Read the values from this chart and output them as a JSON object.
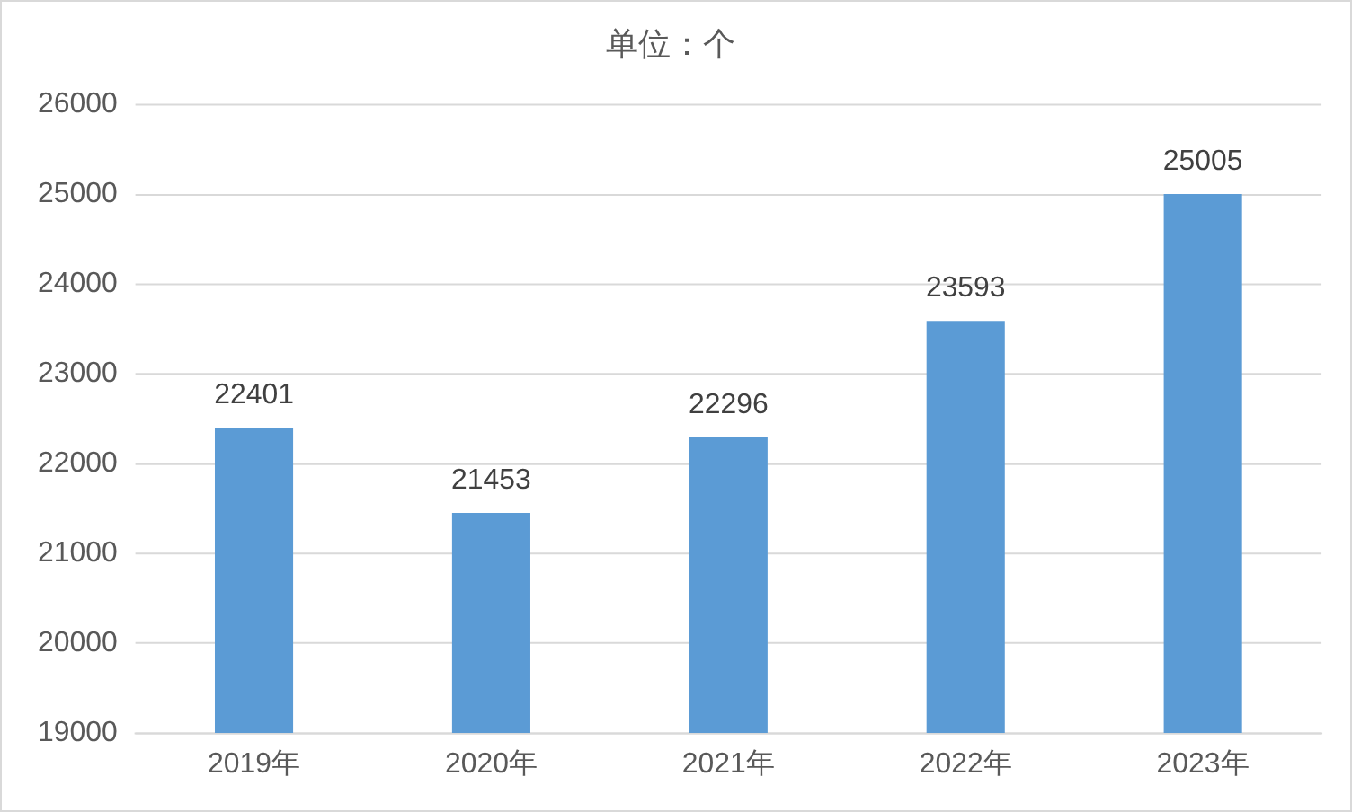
{
  "chart_data": {
    "type": "bar",
    "title": "单位：个",
    "categories": [
      "2019年",
      "2020年",
      "2021年",
      "2022年",
      "2023年"
    ],
    "values": [
      22401,
      21453,
      22296,
      23593,
      25005
    ],
    "color": "#5b9bd5",
    "ylim": [
      19000,
      26000
    ],
    "yticks": [
      19000,
      20000,
      21000,
      22000,
      23000,
      24000,
      25000,
      26000
    ],
    "grid": "y",
    "data_labels": true,
    "legend": false
  }
}
